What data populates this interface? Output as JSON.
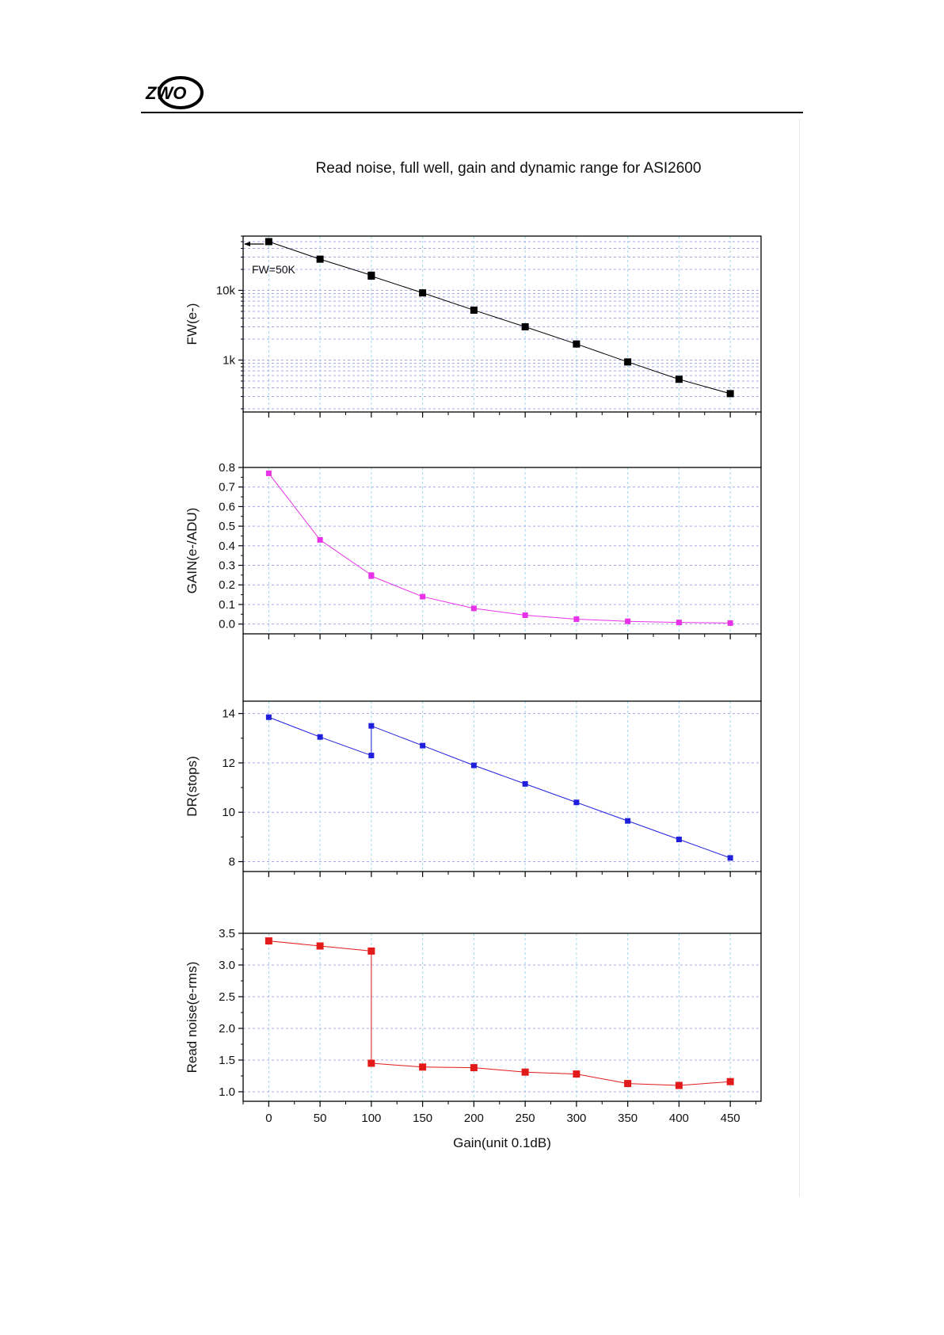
{
  "header": {
    "logo_text": "ZWO"
  },
  "chart_data": {
    "type": "scatter",
    "title": "Read noise, full well, gain and dynamic range for ASI2600",
    "xlabel": "Gain(unit 0.1dB)",
    "xlim": [
      -25,
      480
    ],
    "xticks": [
      0,
      50,
      100,
      150,
      200,
      250,
      300,
      350,
      400,
      450
    ],
    "grid": true,
    "panels": [
      {
        "id": "fw",
        "ylabel": "FW(e-)",
        "yscale": "log",
        "ylim": [
          180,
          60000
        ],
        "yticks": [
          1000,
          10000
        ],
        "ytick_labels": [
          "1k",
          "10k"
        ],
        "color": "#000000",
        "annotation": "FW=50K",
        "x": [
          0,
          50,
          100,
          100,
          150,
          200,
          250,
          300,
          350,
          400,
          450
        ],
        "y": [
          50000,
          28000,
          16500,
          16000,
          9200,
          5200,
          3000,
          1700,
          940,
          530,
          330
        ]
      },
      {
        "id": "gain",
        "ylabel": "GAIN(e-/ADU)",
        "yscale": "linear",
        "ylim": [
          -0.05,
          0.8
        ],
        "yticks": [
          0.0,
          0.1,
          0.2,
          0.3,
          0.4,
          0.5,
          0.6,
          0.7,
          0.8
        ],
        "ytick_labels": [
          "0.0",
          "0.1",
          "0.2",
          "0.3",
          "0.4",
          "0.5",
          "0.6",
          "0.7",
          "0.8"
        ],
        "color": "#e832e8",
        "x": [
          0,
          50,
          100,
          100,
          150,
          200,
          250,
          300,
          350,
          400,
          450
        ],
        "y": [
          0.77,
          0.43,
          0.25,
          0.245,
          0.14,
          0.08,
          0.045,
          0.025,
          0.014,
          0.008,
          0.005
        ]
      },
      {
        "id": "dr",
        "ylabel": "DR(stops)",
        "yscale": "linear",
        "ylim": [
          7.6,
          14.5
        ],
        "yticks": [
          8,
          10,
          12,
          14
        ],
        "ytick_labels": [
          "8",
          "10",
          "12",
          "14"
        ],
        "color": "#1f1fdc",
        "x": [
          0,
          50,
          100,
          100,
          150,
          200,
          250,
          300,
          350,
          400,
          450
        ],
        "y": [
          13.85,
          13.05,
          12.3,
          13.5,
          12.7,
          11.9,
          11.15,
          10.4,
          9.65,
          8.9,
          8.15
        ]
      },
      {
        "id": "rn",
        "ylabel": "Read noise(e-rms)",
        "yscale": "linear",
        "ylim": [
          0.85,
          3.5
        ],
        "yticks": [
          1.0,
          1.5,
          2.0,
          2.5,
          3.0,
          3.5
        ],
        "ytick_labels": [
          "1.0",
          "1.5",
          "2.0",
          "2.5",
          "3.0",
          "3.5"
        ],
        "color": "#e31a1a",
        "x": [
          0,
          50,
          100,
          100,
          150,
          200,
          250,
          300,
          350,
          400,
          450
        ],
        "y": [
          3.38,
          3.3,
          3.22,
          1.45,
          1.39,
          1.38,
          1.31,
          1.28,
          1.13,
          1.1,
          1.16
        ]
      }
    ]
  }
}
